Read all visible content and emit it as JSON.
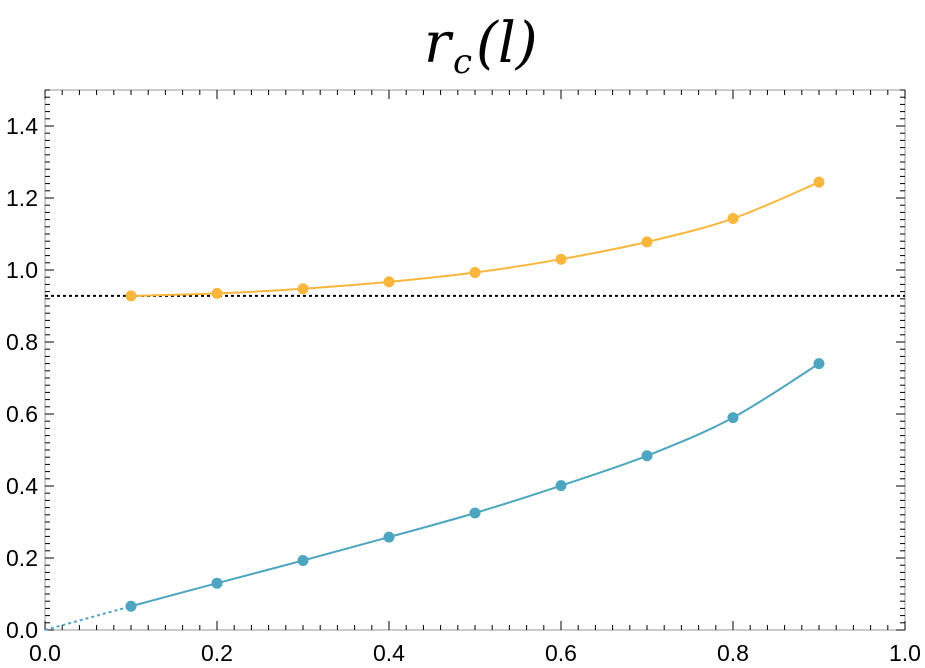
{
  "chart_data": {
    "type": "line",
    "title": {
      "main": "r",
      "sub": "c",
      "rest": "(l)"
    },
    "xlabel": "",
    "ylabel": "",
    "xlim": [
      0.0,
      1.0
    ],
    "ylim": [
      0.0,
      1.5
    ],
    "x_ticks": [
      "0.0",
      "0.2",
      "0.4",
      "0.6",
      "0.8",
      "1.0"
    ],
    "y_ticks": [
      "0.0",
      "0.2",
      "0.4",
      "0.6",
      "0.8",
      "1.0",
      "1.2",
      "1.4"
    ],
    "grid": false,
    "frame": true,
    "series": [
      {
        "color": "#F8B73C",
        "x": [
          0.1,
          0.2,
          0.3,
          0.4,
          0.5,
          0.6,
          0.7,
          0.8,
          0.9
        ],
        "y": [
          0.928,
          0.935,
          0.948,
          0.967,
          0.993,
          1.03,
          1.078,
          1.143,
          1.244
        ]
      },
      {
        "color": "#4DA5C0",
        "x": [
          0.1,
          0.2,
          0.3,
          0.4,
          0.5,
          0.6,
          0.7,
          0.8,
          0.9
        ],
        "y": [
          0.066,
          0.13,
          0.193,
          0.258,
          0.325,
          0.401,
          0.484,
          0.59,
          0.74
        ],
        "extrapolation": {
          "x": [
            0.0,
            0.1
          ],
          "y": [
            0.0,
            0.066
          ],
          "style": "dotted"
        }
      }
    ],
    "reference_line": {
      "y": 0.928,
      "style": "dotted",
      "color": "#000000"
    }
  }
}
